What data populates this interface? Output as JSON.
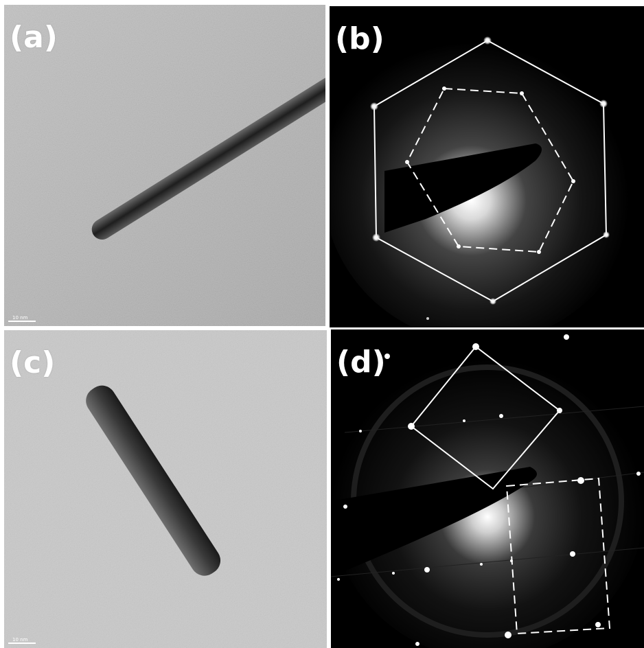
{
  "panels": {
    "a": {
      "label": "(a)",
      "scalebar": "10 nm"
    },
    "b": {
      "label": "(b)"
    },
    "c": {
      "label": "(c)",
      "scalebar": "10 nm"
    },
    "d": {
      "label": "(d)"
    }
  },
  "colors": {
    "tem_background": "#b8b8b8",
    "rod": "#2a2a2a",
    "diffraction_background": "#000000",
    "overlay_lines": "#ffffff"
  }
}
